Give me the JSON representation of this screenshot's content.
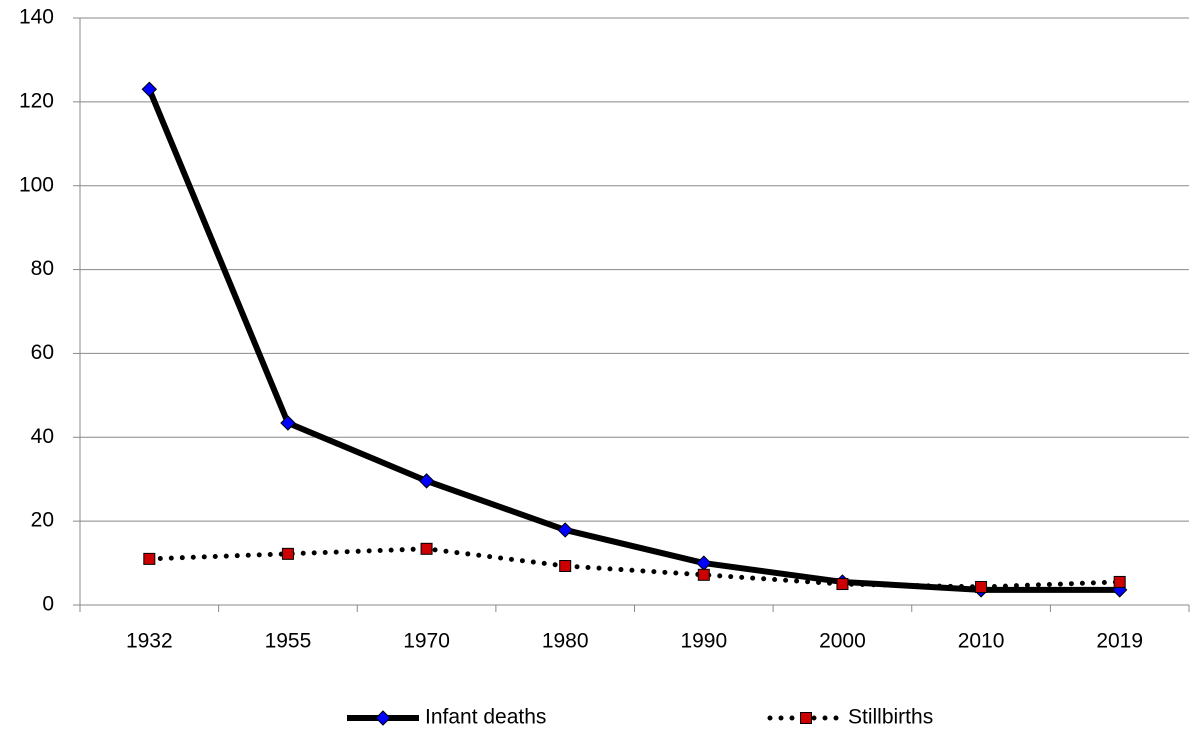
{
  "chart_data": {
    "type": "line",
    "categories": [
      "1932",
      "1955",
      "1970",
      "1980",
      "1990",
      "2000",
      "2010",
      "2019"
    ],
    "series": [
      {
        "name": "Infant deaths",
        "color": "#000000",
        "line_style": "solid",
        "marker": "diamond",
        "marker_color": "#0000ff",
        "values": [
          123,
          43.4,
          29.6,
          17.9,
          10,
          5.5,
          3.6,
          3.6
        ]
      },
      {
        "name": "Stillbirths",
        "color": "#000000",
        "line_style": "dotted",
        "marker": "square",
        "marker_color": "#cc0000",
        "values": [
          11,
          12.2,
          13.4,
          9.3,
          7.2,
          5,
          4.3,
          5.5
        ]
      }
    ],
    "ylim": [
      0,
      140
    ],
    "yticks": [
      0,
      20,
      40,
      60,
      80,
      100,
      120,
      140
    ],
    "grid": true,
    "legend": "bottom"
  }
}
